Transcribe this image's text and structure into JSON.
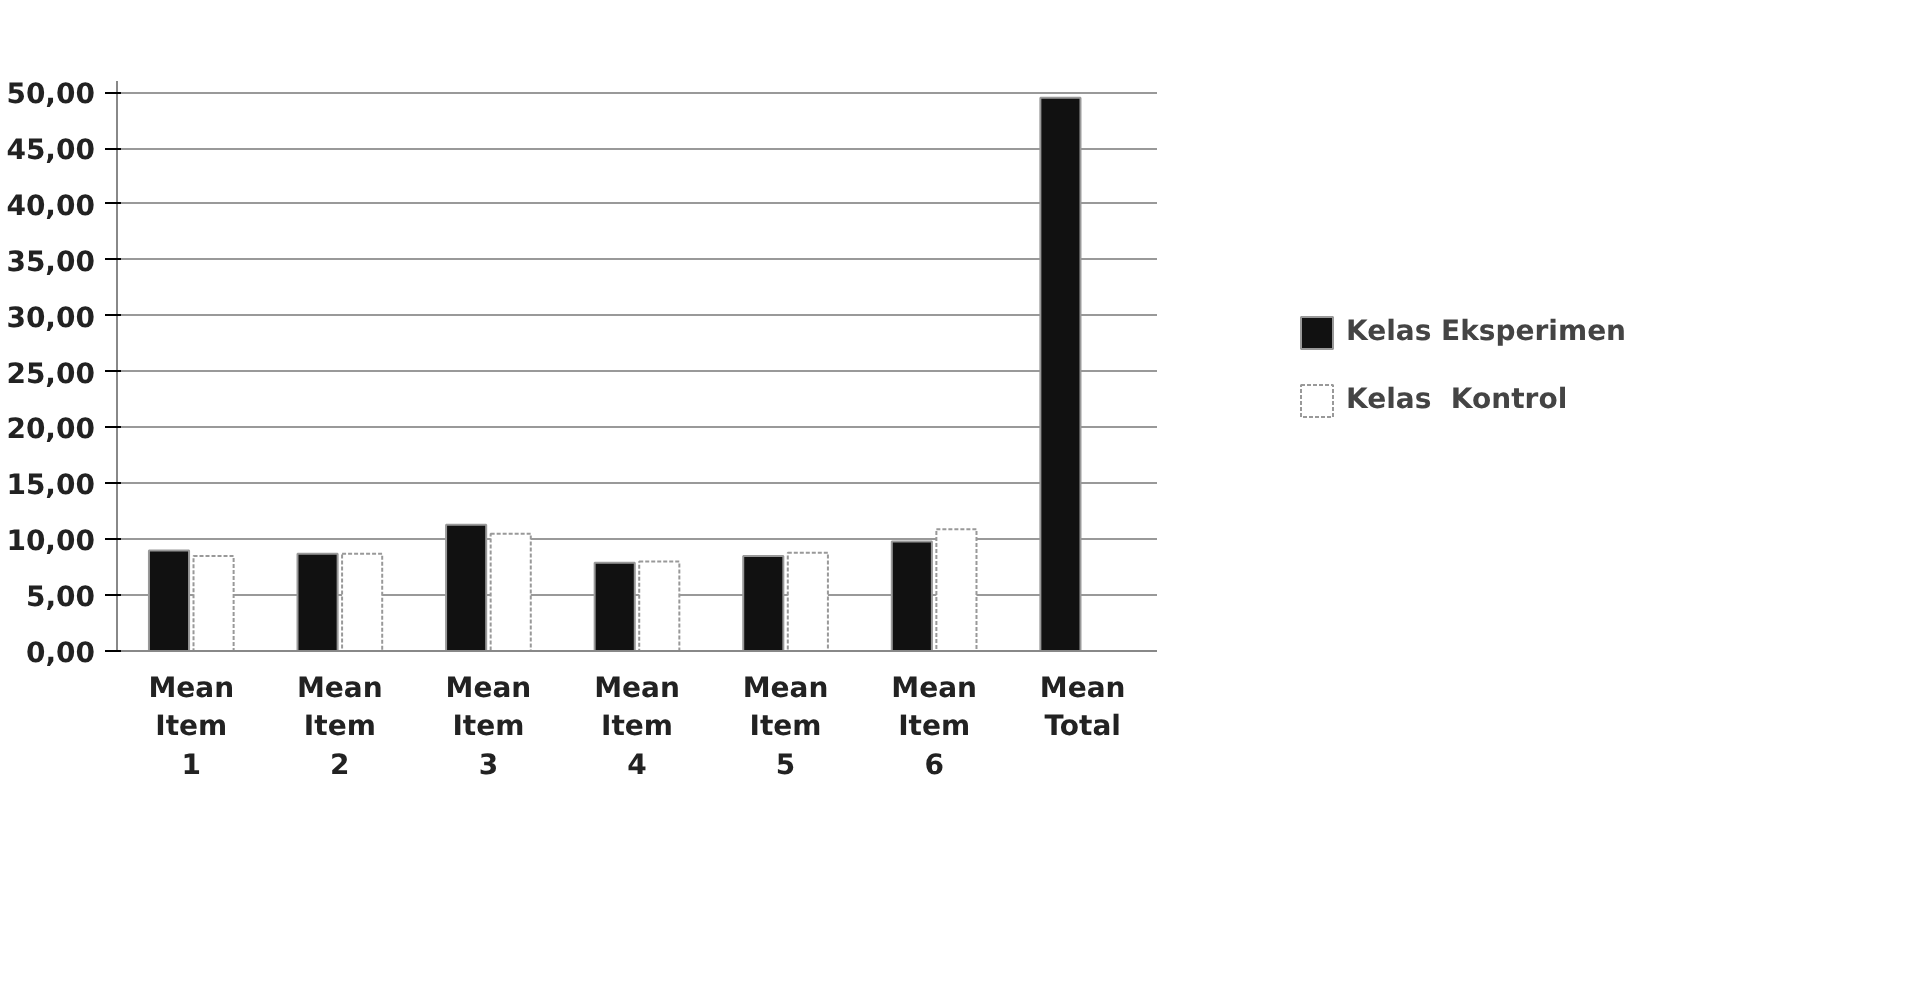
{
  "chart_data": {
    "type": "bar",
    "categories": [
      "Mean Item 1",
      "Mean Item 2",
      "Mean Item 3",
      "Mean Item 4",
      "Mean Item 5",
      "Mean Item 6",
      "Mean Total"
    ],
    "series": [
      {
        "name": "Kelas Eksperimen",
        "color": "#111111",
        "values": [
          9.0,
          8.7,
          11.3,
          7.9,
          8.5,
          9.8,
          49.5
        ]
      },
      {
        "name": "Kelas  Kontrol",
        "color": "#ffffff",
        "values": [
          8.5,
          8.7,
          10.5,
          8.0,
          8.8,
          10.9,
          null
        ]
      }
    ],
    "ylim": [
      0,
      50
    ],
    "yticks": [
      {
        "value": 0,
        "label": "0,00"
      },
      {
        "value": 5,
        "label": "5,00"
      },
      {
        "value": 10,
        "label": "10,00"
      },
      {
        "value": 15,
        "label": "15,00"
      },
      {
        "value": 20,
        "label": "20,00"
      },
      {
        "value": 25,
        "label": "25,00"
      },
      {
        "value": 30,
        "label": "30,00"
      },
      {
        "value": 35,
        "label": "35,00"
      },
      {
        "value": 40,
        "label": "40,00"
      },
      {
        "value": 45,
        "label": "45,00"
      },
      {
        "value": 50,
        "label": "50,00"
      }
    ],
    "grid": "y",
    "legend": "right"
  }
}
